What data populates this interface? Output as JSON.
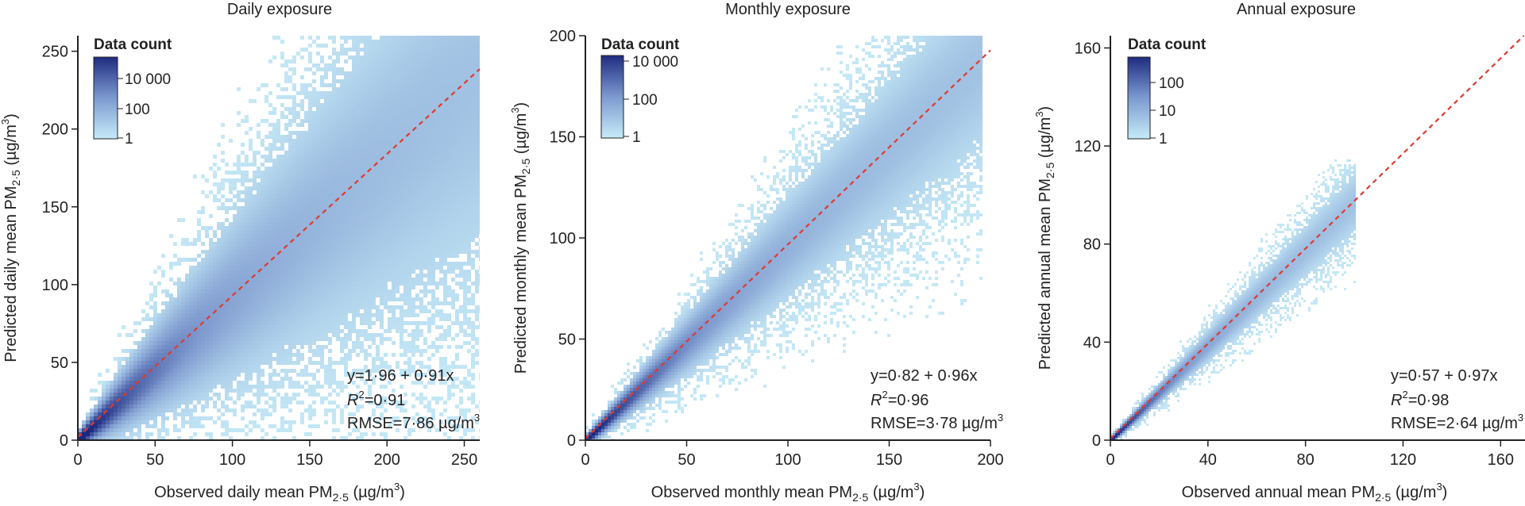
{
  "chart_data": [
    {
      "type": "heatmap",
      "title": "Daily exposure",
      "xlabel": {
        "pre": "Observed daily mean PM",
        "sub": "2·5",
        "post": " (µg/m",
        "sup": "3",
        "end": ")"
      },
      "ylabel": {
        "pre": "Predicted daily mean PM",
        "sub": "2·5",
        "post": " (µg/m",
        "sup": "3",
        "end": ")"
      },
      "xlim": [
        0,
        260
      ],
      "ylim": [
        0,
        260
      ],
      "xticks": [
        0,
        50,
        100,
        150,
        200,
        250
      ],
      "yticks": [
        0,
        50,
        100,
        150,
        200,
        250
      ],
      "xtick_labels": [
        "0",
        "50",
        "100",
        "150",
        "200",
        "250"
      ],
      "ytick_labels": [
        "0",
        "50",
        "100",
        "150",
        "200",
        "250"
      ],
      "colorbar": {
        "title": "Data count",
        "ticks": [
          "10 000",
          "100",
          "1"
        ]
      },
      "fit": {
        "intercept": 1.96,
        "slope": 0.91
      },
      "equation": "y=1·96 + 0·91x",
      "r2_label": "R",
      "r2_sup": "2",
      "r2_value": "=0·91",
      "rmse": {
        "pre": "RMSE=7·86 µg/m",
        "sup": "3"
      },
      "density": {
        "max_x": 260,
        "spread": 0.27,
        "base_spread": 4
      }
    },
    {
      "type": "heatmap",
      "title": "Monthly exposure",
      "xlabel": {
        "pre": "Observed monthly mean PM",
        "sub": "2·5",
        "post": " (µg/m",
        "sup": "3",
        "end": ")"
      },
      "ylabel": {
        "pre": "Predicted monthly mean PM",
        "sub": "2·5",
        "post": " (µg/m",
        "sup": "3",
        "end": ")"
      },
      "xlim": [
        0,
        200
      ],
      "ylim": [
        0,
        200
      ],
      "xticks": [
        0,
        50,
        100,
        150,
        200
      ],
      "yticks": [
        0,
        50,
        100,
        150,
        200
      ],
      "xtick_labels": [
        "0",
        "50",
        "100",
        "150",
        "200"
      ],
      "ytick_labels": [
        "0",
        "50",
        "100",
        "150",
        "200"
      ],
      "colorbar": {
        "title": "Data count",
        "ticks": [
          "10 000",
          "100",
          "1"
        ]
      },
      "fit": {
        "intercept": 0.82,
        "slope": 0.96
      },
      "equation": "y=0·82 + 0·96x",
      "r2_label": "R",
      "r2_sup": "2",
      "r2_value": "=0·96",
      "rmse": {
        "pre": "RMSE=3·78 µg/m",
        "sup": "3"
      },
      "density": {
        "max_x": 195,
        "spread": 0.13,
        "base_spread": 2
      }
    },
    {
      "type": "heatmap",
      "title": "Annual exposure",
      "xlabel": {
        "pre": "Observed annual mean PM",
        "sub": "2·5",
        "post": " (µg/m",
        "sup": "3",
        "end": ")"
      },
      "ylabel": {
        "pre": "Predicted annual mean PM",
        "sub": "2·5",
        "post": " (µg/m",
        "sup": "3",
        "end": ")"
      },
      "xlim": [
        0,
        170
      ],
      "ylim": [
        0,
        165
      ],
      "xticks": [
        0,
        40,
        80,
        120,
        160
      ],
      "yticks": [
        0,
        40,
        80,
        120,
        160
      ],
      "xtick_labels": [
        "0",
        "40",
        "80",
        "120",
        "160"
      ],
      "ytick_labels": [
        "0",
        "40",
        "80",
        "120",
        "160"
      ],
      "colorbar": {
        "title": "Data count",
        "ticks": [
          "100",
          "10",
          "1"
        ]
      },
      "fit": {
        "intercept": 0.57,
        "slope": 0.97
      },
      "equation": "y=0·57 + 0·97x",
      "r2_label": "R",
      "r2_sup": "2",
      "r2_value": "=0·98",
      "rmse": {
        "pre": "RMSE=2·64 µg/m",
        "sup": "3"
      },
      "density": {
        "max_x": 100,
        "spread": 0.07,
        "base_spread": 1
      }
    }
  ],
  "colors": {
    "low": "#bfe6f5",
    "mid": "#7f9fd0",
    "high": "#1f2f85",
    "fit_line": "#e03a2e"
  }
}
